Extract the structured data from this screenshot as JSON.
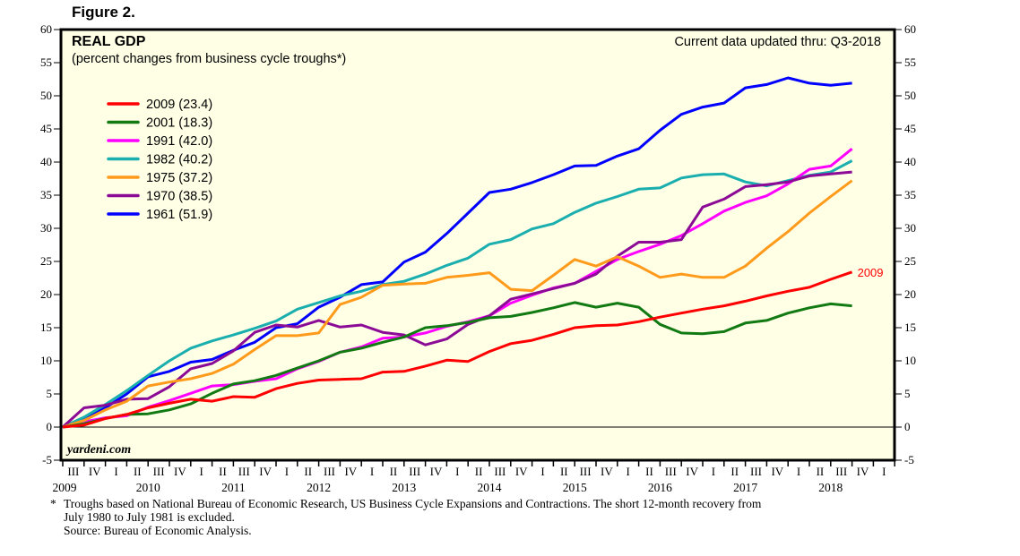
{
  "figure_label": "Figure 2.",
  "chart_data": {
    "type": "line",
    "title": "REAL GDP",
    "subtitle": "(percent changes from business cycle troughs*)",
    "update_note": "Current data updated thru: Q3-2018",
    "xlabel": "",
    "ylabel": "",
    "ylim": [
      -5,
      60
    ],
    "yticks": [
      -5,
      0,
      5,
      10,
      15,
      20,
      25,
      30,
      35,
      40,
      45,
      50,
      55,
      60
    ],
    "grid": false,
    "legend_position": "top-left",
    "x_start": "Q2-2009",
    "x_quarters_shown": [
      "III",
      "IV",
      "I",
      "II",
      "III",
      "IV",
      "I",
      "II",
      "III",
      "IV",
      "I",
      "II",
      "III",
      "IV",
      "I",
      "II",
      "III",
      "IV",
      "I",
      "II",
      "III",
      "IV",
      "I",
      "II",
      "III",
      "IV",
      "I",
      "II",
      "III",
      "IV",
      "I",
      "II",
      "III",
      "IV",
      "I",
      "II",
      "III",
      "IV",
      "I"
    ],
    "x_years": [
      "2009",
      "2010",
      "2011",
      "2012",
      "2013",
      "2014",
      "2015",
      "2016",
      "2017",
      "2018"
    ],
    "series": [
      {
        "name": "1961",
        "legend": "1961 (51.9)",
        "color": "#0000ff",
        "values": [
          0,
          1.2,
          2.9,
          5.0,
          7.6,
          8.4,
          9.8,
          10.2,
          11.6,
          12.8,
          15.0,
          15.6,
          18.1,
          19.6,
          21.5,
          21.9,
          24.9,
          26.4,
          29.2,
          32.3,
          35.4,
          35.9,
          36.9,
          38.1,
          39.4,
          39.5,
          40.9,
          42.0,
          44.8,
          47.2,
          48.3,
          48.9,
          51.2,
          51.7,
          52.7,
          51.9,
          51.6,
          51.9
        ]
      },
      {
        "name": "1982",
        "legend": "1982 (40.2)",
        "color": "#1aaeae",
        "values": [
          0,
          1.5,
          3.4,
          5.5,
          7.8,
          10.0,
          11.9,
          13.0,
          13.9,
          14.9,
          16.0,
          17.8,
          18.8,
          19.8,
          20.5,
          21.5,
          22.0,
          23.1,
          24.4,
          25.5,
          27.6,
          28.3,
          29.9,
          30.7,
          32.4,
          33.8,
          34.8,
          35.9,
          36.1,
          37.6,
          38.1,
          38.2,
          37.0,
          36.4,
          37.2,
          38.0,
          38.5,
          40.2
        ]
      },
      {
        "name": "1991",
        "legend": "1991 (42.0)",
        "color": "#ff00ff",
        "values": [
          0,
          0.8,
          1.4,
          1.7,
          3.0,
          4.0,
          5.1,
          6.2,
          6.4,
          6.9,
          7.3,
          8.8,
          9.9,
          11.3,
          12.1,
          13.4,
          13.6,
          14.2,
          15.2,
          15.9,
          16.8,
          18.7,
          19.9,
          21.0,
          21.7,
          23.5,
          25.3,
          26.5,
          27.6,
          28.9,
          30.7,
          32.6,
          33.9,
          34.9,
          36.7,
          38.9,
          39.4,
          42.0
        ]
      },
      {
        "name": "1970",
        "legend": "1970 (38.5)",
        "color": "#8b0a96",
        "values": [
          0,
          2.9,
          3.3,
          4.2,
          4.3,
          6.1,
          8.8,
          9.6,
          11.5,
          14.3,
          15.4,
          15.1,
          16.1,
          15.1,
          15.4,
          14.3,
          13.9,
          12.4,
          13.3,
          15.5,
          16.8,
          19.3,
          20.1,
          20.9,
          21.7,
          23.1,
          25.8,
          27.9,
          27.9,
          28.3,
          33.2,
          34.4,
          36.3,
          36.6,
          37.0,
          37.9,
          38.2,
          38.5
        ]
      },
      {
        "name": "1975",
        "legend": "1975 (37.2)",
        "color": "#ff9a1a",
        "values": [
          0,
          1.0,
          2.6,
          3.9,
          6.2,
          6.8,
          7.3,
          8.1,
          9.5,
          11.7,
          13.8,
          13.8,
          14.2,
          18.5,
          19.6,
          21.4,
          21.6,
          21.7,
          22.6,
          22.9,
          23.3,
          20.8,
          20.6,
          22.9,
          25.3,
          24.3,
          25.7,
          24.3,
          22.6,
          23.1,
          22.6,
          22.6,
          24.3,
          27.0,
          29.5,
          32.3,
          34.8,
          37.2
        ]
      },
      {
        "name": "2001",
        "legend": "2001 (18.3)",
        "color": "#127a12",
        "values": [
          0,
          0.5,
          1.3,
          1.9,
          2.0,
          2.6,
          3.5,
          5.1,
          6.5,
          7.0,
          7.8,
          8.9,
          10.0,
          11.3,
          11.9,
          12.8,
          13.6,
          15.0,
          15.3,
          15.8,
          16.5,
          16.7,
          17.3,
          18.0,
          18.8,
          18.1,
          18.7,
          18.1,
          15.5,
          14.2,
          14.1,
          14.4,
          15.7,
          16.1,
          17.2,
          18.0,
          18.6,
          18.3
        ]
      },
      {
        "name": "2009",
        "legend": "2009 (23.4)",
        "color": "#ff0000",
        "values": [
          0,
          0.3,
          1.3,
          1.9,
          2.9,
          3.6,
          4.2,
          3.9,
          4.6,
          4.5,
          5.8,
          6.6,
          7.1,
          7.2,
          7.3,
          8.3,
          8.4,
          9.2,
          10.1,
          9.9,
          11.4,
          12.6,
          13.1,
          14.0,
          15.0,
          15.3,
          15.4,
          15.9,
          16.6,
          17.2,
          17.8,
          18.3,
          19.0,
          19.8,
          20.5,
          21.1,
          22.3,
          23.4
        ]
      }
    ],
    "end_label": {
      "series": "2009",
      "text": "2009"
    },
    "brand": "yardeni.com"
  },
  "footnote": {
    "marker": "*",
    "line1": "Troughs based on National Bureau of Economic Research, US Business Cycle Expansions and Contractions. The short 12-month recovery from",
    "line2": "July 1980 to July 1981 is excluded.",
    "source": "Source: Bureau of Economic Analysis."
  }
}
